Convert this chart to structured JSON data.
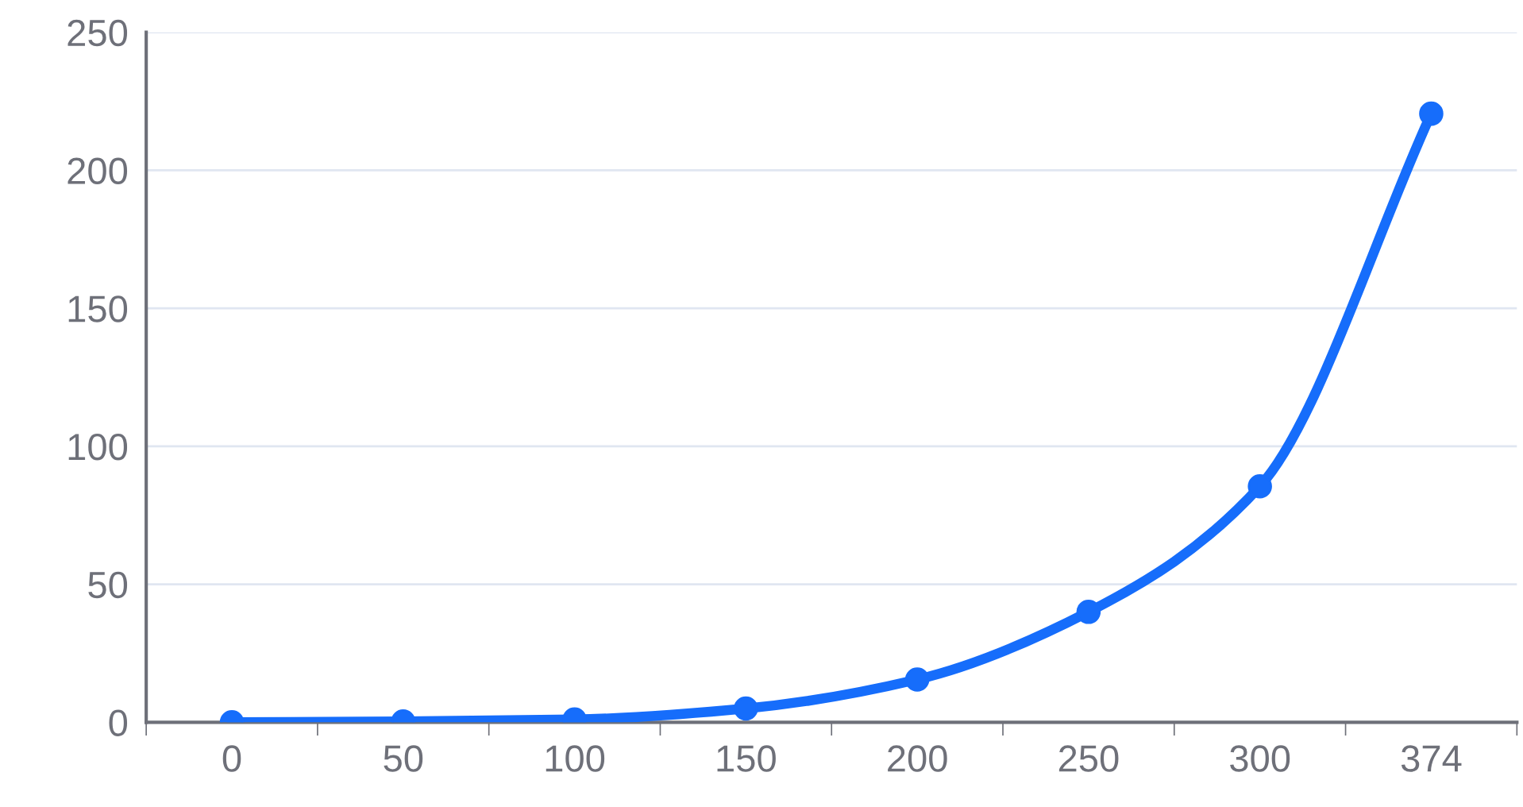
{
  "chart_data": {
    "type": "line",
    "categories": [
      "0",
      "50",
      "100",
      "150",
      "200",
      "250",
      "300",
      "374"
    ],
    "series": [
      {
        "color": "#166dfb",
        "values": [
          0,
          0.3,
          1,
          5,
          15.5,
          40,
          85.5,
          220.5
        ]
      }
    ],
    "ylim": [
      0,
      250
    ],
    "yticks": [
      0,
      50,
      100,
      150,
      200,
      250
    ],
    "grid": "y",
    "marker": "circle",
    "line_style": "solid"
  }
}
